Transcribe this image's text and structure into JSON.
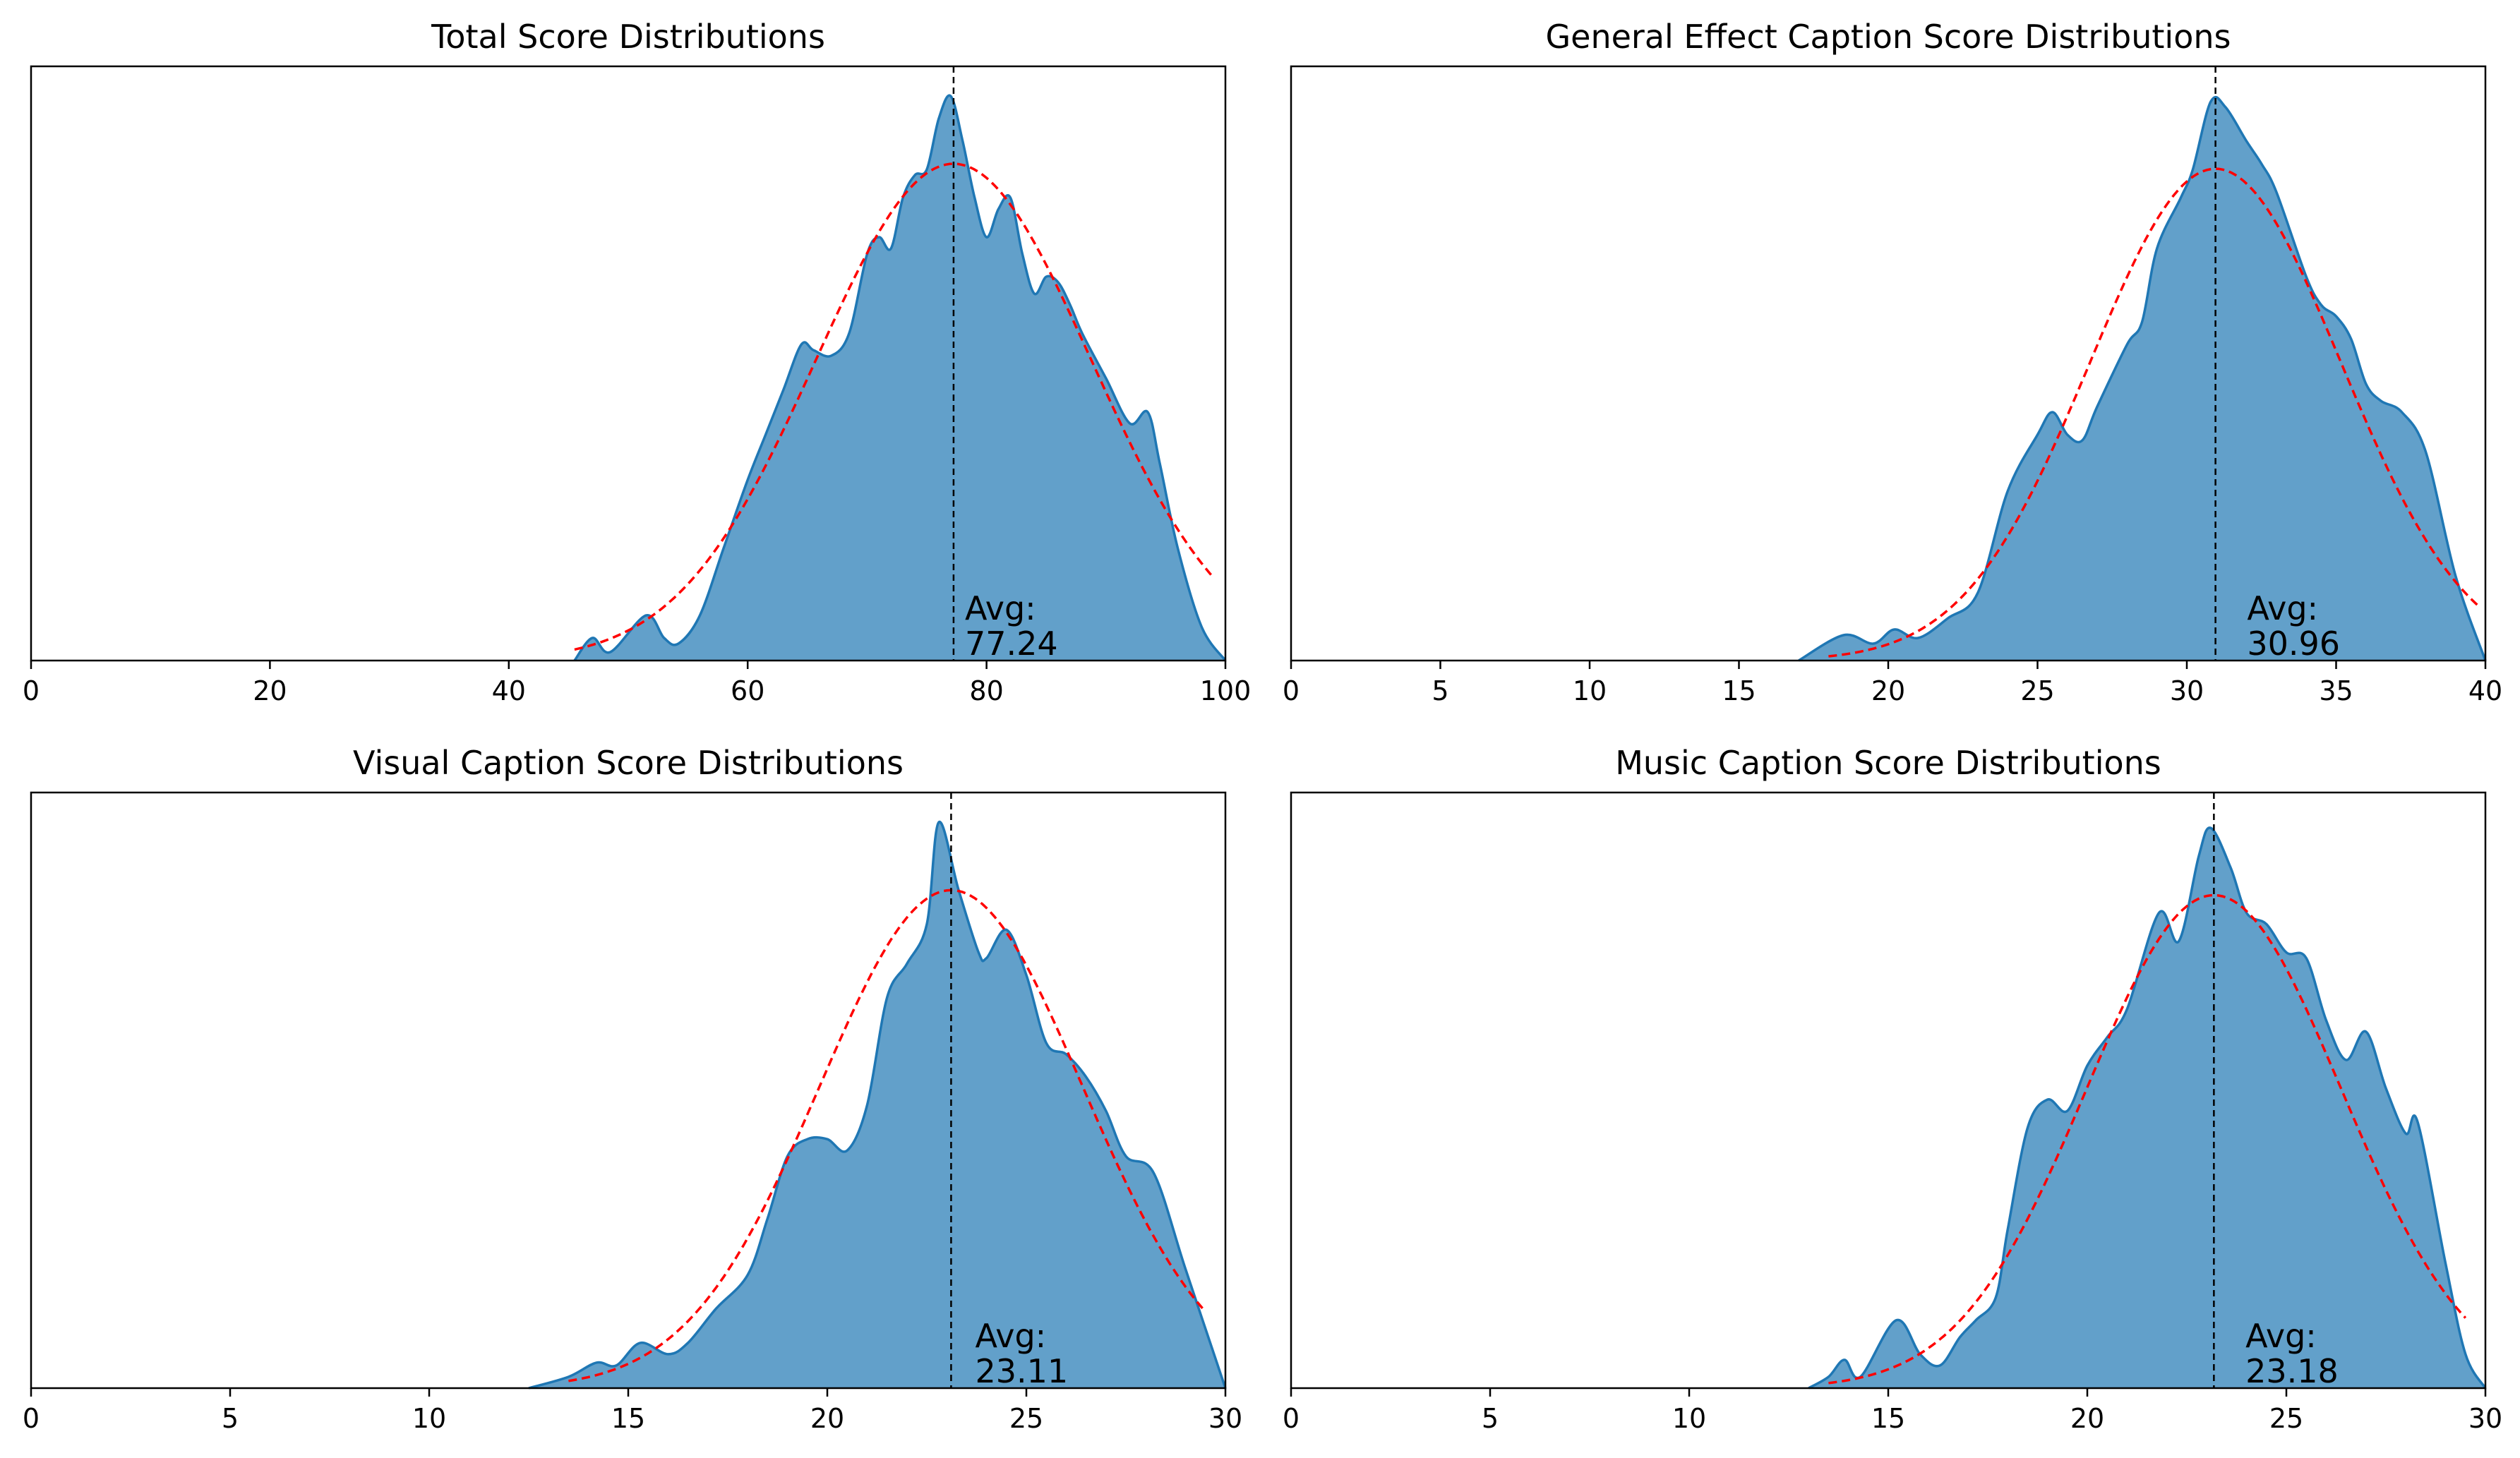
{
  "colors": {
    "fill": "#1f77b4",
    "normal_curve": "#ff0000",
    "mean_line": "#000000"
  },
  "chart_data": [
    {
      "type": "area",
      "title": "Total Score Distributions",
      "xlim": [
        0,
        100
      ],
      "xticks": [
        0,
        20,
        40,
        60,
        80,
        100
      ],
      "mean": 77.24,
      "std": 11.5,
      "avg_label_1": "Avg:",
      "avg_label_2": "77.24",
      "y_axis": "hidden",
      "density": [
        [
          45.5,
          0.0
        ],
        [
          47,
          0.04
        ],
        [
          48.5,
          0.015
        ],
        [
          51.5,
          0.08
        ],
        [
          53,
          0.04
        ],
        [
          54.2,
          0.03
        ],
        [
          56,
          0.08
        ],
        [
          58,
          0.2
        ],
        [
          60,
          0.32
        ],
        [
          61.5,
          0.4
        ],
        [
          63,
          0.48
        ],
        [
          64.5,
          0.56
        ],
        [
          65.5,
          0.55
        ],
        [
          67,
          0.54
        ],
        [
          68.5,
          0.58
        ],
        [
          70,
          0.72
        ],
        [
          71,
          0.75
        ],
        [
          72,
          0.73
        ],
        [
          73,
          0.82
        ],
        [
          74,
          0.86
        ],
        [
          75,
          0.87
        ],
        [
          76,
          0.96
        ],
        [
          77,
          1.0
        ],
        [
          78,
          0.92
        ],
        [
          79,
          0.82
        ],
        [
          80,
          0.75
        ],
        [
          81,
          0.8
        ],
        [
          82,
          0.82
        ],
        [
          83,
          0.72
        ],
        [
          84,
          0.65
        ],
        [
          85,
          0.68
        ],
        [
          86,
          0.67
        ],
        [
          87,
          0.63
        ],
        [
          88,
          0.58
        ],
        [
          90,
          0.5
        ],
        [
          92,
          0.42
        ],
        [
          93.5,
          0.44
        ],
        [
          94.5,
          0.35
        ],
        [
          96,
          0.2
        ],
        [
          98,
          0.06
        ],
        [
          100,
          0.0
        ]
      ],
      "normal_range": [
        45.5,
        99
      ]
    },
    {
      "type": "area",
      "title": "General Effect Caption Score Distributions",
      "xlim": [
        0,
        40
      ],
      "xticks": [
        0,
        5,
        10,
        15,
        20,
        25,
        30,
        35,
        40
      ],
      "mean": 30.96,
      "std": 4.2,
      "avg_label_1": "Avg:",
      "avg_label_2": "30.96",
      "y_axis": "hidden",
      "density": [
        [
          17,
          0.0
        ],
        [
          18.5,
          0.045
        ],
        [
          19.5,
          0.03
        ],
        [
          20.2,
          0.055
        ],
        [
          21,
          0.04
        ],
        [
          22,
          0.075
        ],
        [
          23,
          0.12
        ],
        [
          24,
          0.3
        ],
        [
          25,
          0.4
        ],
        [
          25.5,
          0.44
        ],
        [
          26,
          0.4
        ],
        [
          26.5,
          0.39
        ],
        [
          27,
          0.45
        ],
        [
          28,
          0.56
        ],
        [
          28.5,
          0.6
        ],
        [
          29,
          0.73
        ],
        [
          29.8,
          0.82
        ],
        [
          30.2,
          0.87
        ],
        [
          30.8,
          0.99
        ],
        [
          31.3,
          0.98
        ],
        [
          32,
          0.92
        ],
        [
          32.5,
          0.88
        ],
        [
          33,
          0.83
        ],
        [
          34,
          0.68
        ],
        [
          34.5,
          0.63
        ],
        [
          35,
          0.61
        ],
        [
          35.5,
          0.57
        ],
        [
          36,
          0.49
        ],
        [
          36.5,
          0.46
        ],
        [
          37.2,
          0.44
        ],
        [
          38,
          0.37
        ],
        [
          39,
          0.15
        ],
        [
          40,
          0.0
        ]
      ],
      "normal_range": [
        18,
        39.8
      ]
    },
    {
      "type": "area",
      "title": "Visual Caption Score Distributions",
      "xlim": [
        0,
        30
      ],
      "xticks": [
        0,
        5,
        10,
        15,
        20,
        25,
        30
      ],
      "mean": 23.11,
      "std": 3.3,
      "avg_label_1": "Avg:",
      "avg_label_2": "23.11",
      "y_axis": "hidden",
      "density": [
        [
          12.5,
          0.0
        ],
        [
          13.5,
          0.02
        ],
        [
          14.2,
          0.045
        ],
        [
          14.7,
          0.04
        ],
        [
          15.3,
          0.08
        ],
        [
          16,
          0.06
        ],
        [
          16.5,
          0.08
        ],
        [
          17.2,
          0.14
        ],
        [
          18,
          0.2
        ],
        [
          18.5,
          0.3
        ],
        [
          19,
          0.41
        ],
        [
          19.5,
          0.44
        ],
        [
          20,
          0.44
        ],
        [
          20.5,
          0.42
        ],
        [
          21,
          0.5
        ],
        [
          21.5,
          0.69
        ],
        [
          22,
          0.75
        ],
        [
          22.5,
          0.82
        ],
        [
          22.8,
          1.0
        ],
        [
          23.3,
          0.88
        ],
        [
          23.8,
          0.77
        ],
        [
          24,
          0.76
        ],
        [
          24.5,
          0.81
        ],
        [
          25,
          0.73
        ],
        [
          25.5,
          0.61
        ],
        [
          26,
          0.59
        ],
        [
          26.5,
          0.55
        ],
        [
          27,
          0.49
        ],
        [
          27.5,
          0.41
        ],
        [
          28.2,
          0.38
        ],
        [
          29,
          0.21
        ],
        [
          30,
          0.0
        ]
      ],
      "normal_range": [
        13.5,
        29.5
      ]
    },
    {
      "type": "area",
      "title": "Music Caption Score Distributions",
      "xlim": [
        0,
        30
      ],
      "xticks": [
        0,
        5,
        10,
        15,
        20,
        25,
        30
      ],
      "mean": 23.18,
      "std": 3.2,
      "avg_label_1": "Avg:",
      "avg_label_2": "23.18",
      "y_axis": "hidden",
      "density": [
        [
          13,
          0.0
        ],
        [
          13.5,
          0.02
        ],
        [
          13.9,
          0.05
        ],
        [
          14.3,
          0.02
        ],
        [
          15.2,
          0.12
        ],
        [
          15.8,
          0.06
        ],
        [
          16.3,
          0.04
        ],
        [
          16.8,
          0.09
        ],
        [
          17.2,
          0.12
        ],
        [
          17.7,
          0.16
        ],
        [
          18,
          0.28
        ],
        [
          18.5,
          0.46
        ],
        [
          19,
          0.51
        ],
        [
          19.5,
          0.49
        ],
        [
          20,
          0.57
        ],
        [
          20.5,
          0.62
        ],
        [
          21,
          0.67
        ],
        [
          21.8,
          0.84
        ],
        [
          22.3,
          0.79
        ],
        [
          22.8,
          0.94
        ],
        [
          23.1,
          0.99
        ],
        [
          23.6,
          0.92
        ],
        [
          24,
          0.84
        ],
        [
          24.5,
          0.82
        ],
        [
          25,
          0.77
        ],
        [
          25.5,
          0.76
        ],
        [
          26,
          0.65
        ],
        [
          26.5,
          0.58
        ],
        [
          27,
          0.63
        ],
        [
          27.5,
          0.53
        ],
        [
          28,
          0.45
        ],
        [
          28.3,
          0.47
        ],
        [
          29,
          0.22
        ],
        [
          29.5,
          0.06
        ],
        [
          30,
          0.0
        ]
      ],
      "normal_range": [
        13.5,
        29.5
      ]
    }
  ]
}
